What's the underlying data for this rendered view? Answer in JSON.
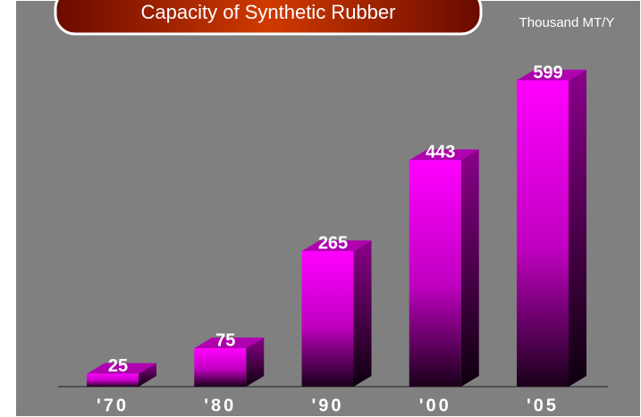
{
  "chart_data": {
    "type": "bar3d",
    "title": "Capacity of Synthetic Rubber",
    "unit_label": "Thousand MT/Y",
    "categories": [
      "'70",
      "'80",
      "'90",
      "'00",
      "'05"
    ],
    "values": [
      25,
      75,
      265,
      443,
      599
    ],
    "color": "#ff00ff"
  }
}
